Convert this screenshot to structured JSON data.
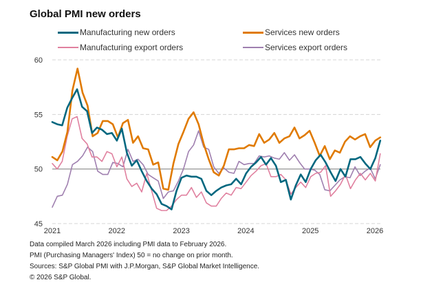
{
  "chart_data": {
    "type": "line",
    "title": "Global PMI new orders",
    "xlabel": "",
    "ylabel": "",
    "ylim": [
      45,
      60
    ],
    "yticks": [
      45,
      50,
      55,
      60
    ],
    "reference_line": 50,
    "grid": true,
    "x_start": "2021-01",
    "x_end": "2026-02",
    "xticks": [
      "2021",
      "2022",
      "2023",
      "2024",
      "2025",
      "2026"
    ],
    "legend_position": "top",
    "series": [
      {
        "name": "Manufacturing new orders",
        "color": "#00677F",
        "values": [
          54.3,
          54.1,
          54.0,
          55.6,
          56.5,
          57.3,
          55.7,
          55.3,
          53.3,
          53.8,
          53.6,
          53.2,
          53.3,
          52.6,
          53.7,
          51.5,
          50.3,
          50.8,
          49.8,
          48.9,
          48.2,
          47.7,
          46.8,
          46.6,
          46.3,
          48.0,
          49.2,
          49.4,
          49.3,
          49.3,
          49.1,
          48.0,
          47.6,
          48.0,
          48.3,
          48.5,
          48.6,
          49.1,
          48.6,
          49.6,
          50.2,
          50.6,
          51.1,
          50.4,
          51.0,
          50.3,
          48.8,
          49.0,
          47.2,
          48.5,
          49.5,
          48.8,
          50.0,
          50.8,
          51.3,
          50.6,
          49.7,
          48.9,
          50.0,
          49.3,
          50.9,
          50.9,
          51.1,
          50.5,
          50.0,
          51.0,
          52.6
        ]
      },
      {
        "name": "Services new orders",
        "color": "#E07A00",
        "values": [
          51.1,
          50.8,
          51.6,
          53.4,
          57.2,
          59.2,
          57.0,
          55.8,
          53.0,
          53.3,
          54.4,
          54.4,
          54.1,
          52.9,
          54.2,
          54.5,
          52.4,
          53.0,
          51.9,
          51.8,
          50.4,
          50.6,
          48.2,
          48.1,
          50.5,
          52.3,
          53.4,
          54.6,
          55.2,
          54.1,
          52.3,
          50.9,
          49.7,
          49.4,
          50.3,
          51.8,
          51.8,
          51.9,
          51.9,
          52.2,
          52.1,
          53.2,
          52.4,
          52.7,
          53.3,
          52.4,
          52.8,
          53.0,
          53.8,
          52.8,
          53.1,
          53.5,
          52.4,
          51.2,
          52.1,
          50.9,
          51.7,
          51.5,
          52.5,
          53.0,
          52.7,
          53.0,
          53.2,
          52.0,
          52.6,
          52.9
        ]
      },
      {
        "name": "Manufacturing export orders",
        "color": "#E0809F",
        "values": [
          50.5,
          50.0,
          50.7,
          53.0,
          54.6,
          54.8,
          52.8,
          52.3,
          51.1,
          51.1,
          50.7,
          51.6,
          51.4,
          50.2,
          51.1,
          49.1,
          48.4,
          48.7,
          47.9,
          49.6,
          48.0,
          46.4,
          46.2,
          46.2,
          46.6,
          47.2,
          47.6,
          47.6,
          48.3,
          47.4,
          47.9,
          46.9,
          46.6,
          46.6,
          47.3,
          47.8,
          47.6,
          48.3,
          48.2,
          48.8,
          49.4,
          49.8,
          50.3,
          50.5,
          49.3,
          49.3,
          49.5,
          49.0,
          47.7,
          48.3,
          48.8,
          48.3,
          49.3,
          49.6,
          49.7,
          50.3,
          47.5,
          48.0,
          48.6,
          49.5,
          48.2,
          49.0,
          49.6,
          49.0,
          49.6,
          48.9,
          51.4
        ]
      },
      {
        "name": "Services export orders",
        "color": "#9F7FAF",
        "values": [
          46.5,
          47.5,
          47.6,
          48.6,
          50.4,
          50.7,
          51.2,
          52.0,
          51.6,
          49.8,
          49.5,
          49.5,
          50.6,
          50.5,
          50.2,
          51.8,
          50.7,
          50.9,
          50.4,
          49.5,
          49.2,
          48.9,
          47.3,
          47.9,
          48.0,
          48.9,
          50.0,
          51.6,
          52.2,
          53.5,
          52.0,
          51.8,
          50.2,
          49.6,
          50.1,
          49.7,
          49.6,
          50.7,
          50.4,
          50.5,
          50.5,
          51.2,
          51.1,
          51.2,
          51.0,
          50.9,
          51.5,
          50.8,
          51.3,
          50.6,
          50.0,
          50.0,
          49.9,
          49.5,
          48.1,
          48.0,
          48.5,
          49.0,
          49.3,
          49.2,
          50.2,
          49.4,
          49.8,
          50.1,
          49.1,
          50.4
        ]
      }
    ]
  },
  "footnotes": [
    "Data compiled March 2026 including PMI data to February 2026.",
    "PMI (Purchasing Managers' Index) 50 = no change on prior month.",
    "Sources: S&P Global PMI with J.P.Morgan, S&P Global Market Intelligence.",
    "© 2026 S&P Global."
  ]
}
